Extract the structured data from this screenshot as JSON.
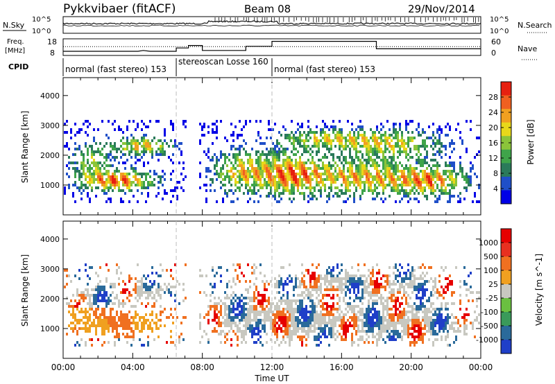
{
  "header": {
    "station": "Pykkvibaer (fitACF)",
    "beam": "Beam 08",
    "date": "29/Nov/2014"
  },
  "noise_panel": {
    "left_label": "N.Sky",
    "right_label": "N.Search",
    "left_ticks": [
      "10^5",
      "10^0"
    ],
    "right_ticks": [
      "10^5",
      "10^0"
    ]
  },
  "freq_panel": {
    "left_label_1": "Freq.",
    "left_label_2": "[MHz]",
    "right_label": "Nave",
    "left_ticks": [
      "18",
      "8"
    ],
    "right_ticks": [
      "60",
      "0"
    ]
  },
  "cpid": {
    "label": "CPID",
    "segments": [
      {
        "name": "normal (fast stereo) 153",
        "start_h": 0.0,
        "end_h": 6.5
      },
      {
        "name": "stereoscan Losse 160",
        "start_h": 6.5,
        "end_h": 12.0
      },
      {
        "name": "normal (fast stereo) 153",
        "start_h": 12.0,
        "end_h": 24.0
      }
    ]
  },
  "time_axis": {
    "label": "Time UT",
    "ticks": [
      "00:00",
      "04:00",
      "08:00",
      "12:00",
      "16:00",
      "20:00",
      "00:00"
    ]
  },
  "power_colorbar": {
    "label": "Power [dB]",
    "ticks": [
      "28",
      "24",
      "20",
      "16",
      "12",
      "8",
      "4"
    ],
    "colors": [
      "#0000e6",
      "#1f4fc8",
      "#2a7a5a",
      "#3fa44a",
      "#8bc43a",
      "#e8d81a",
      "#f0a020",
      "#f06020",
      "#e62010"
    ]
  },
  "velocity_colorbar": {
    "label": "Velocity [m s^-1]",
    "ticks": [
      "1000",
      "500",
      "100",
      "25",
      "-25",
      "-100",
      "-500",
      "-1000"
    ],
    "colors": [
      "#1f3fc8",
      "#2a6a9a",
      "#3a9a5a",
      "#6ac040",
      "#c8c8c0",
      "#f0a020",
      "#f07020",
      "#e83020",
      "#e60000"
    ]
  },
  "chart_data": [
    {
      "type": "heatmap",
      "title": "Power",
      "xlabel": "Time UT",
      "ylabel": "Slant Range [km]",
      "xlim": [
        0,
        24
      ],
      "ylim": [
        0,
        4600
      ],
      "y_ticks": [
        "1000",
        "2000",
        "3000",
        "4000"
      ],
      "y_tick_values": [
        1000,
        2000,
        3000,
        4000
      ],
      "x_tick_values": [
        0,
        4,
        8,
        12,
        16,
        20,
        24
      ],
      "clim": [
        0,
        30
      ],
      "gap_hours": [
        7.0,
        7.7
      ],
      "markers_h": [
        6.5,
        12.0
      ]
    },
    {
      "type": "heatmap",
      "title": "Velocity",
      "xlabel": "Time UT",
      "ylabel": "Slant Range [km]",
      "xlim": [
        0,
        24
      ],
      "ylim": [
        0,
        4600
      ],
      "y_ticks": [
        "1000",
        "2000",
        "3000",
        "4000"
      ],
      "y_tick_values": [
        1000,
        2000,
        3000,
        4000
      ],
      "x_tick_values": [
        0,
        4,
        8,
        12,
        16,
        20,
        24
      ],
      "clim": [
        -1000,
        1000
      ],
      "gap_hours": [
        7.0,
        7.7
      ],
      "markers_h": [
        6.5,
        12.0
      ]
    }
  ],
  "freq_series": {
    "freq_mhz": [
      [
        0,
        10.5
      ],
      [
        4.3,
        10.5
      ],
      [
        4.6,
        11.0
      ],
      [
        5.0,
        10.5
      ],
      [
        6.5,
        10.5
      ],
      [
        6.5,
        12.5
      ],
      [
        7.2,
        12.5
      ],
      [
        7.2,
        14.0
      ],
      [
        8.0,
        14.0
      ],
      [
        8.0,
        11.0
      ],
      [
        10.5,
        11.0
      ],
      [
        10.5,
        13.5
      ],
      [
        12.0,
        13.5
      ],
      [
        12.0,
        16.5
      ],
      [
        18.0,
        16.5
      ],
      [
        18.0,
        12.0
      ],
      [
        24.0,
        12.0
      ]
    ],
    "nave_dotted": 12.5
  }
}
